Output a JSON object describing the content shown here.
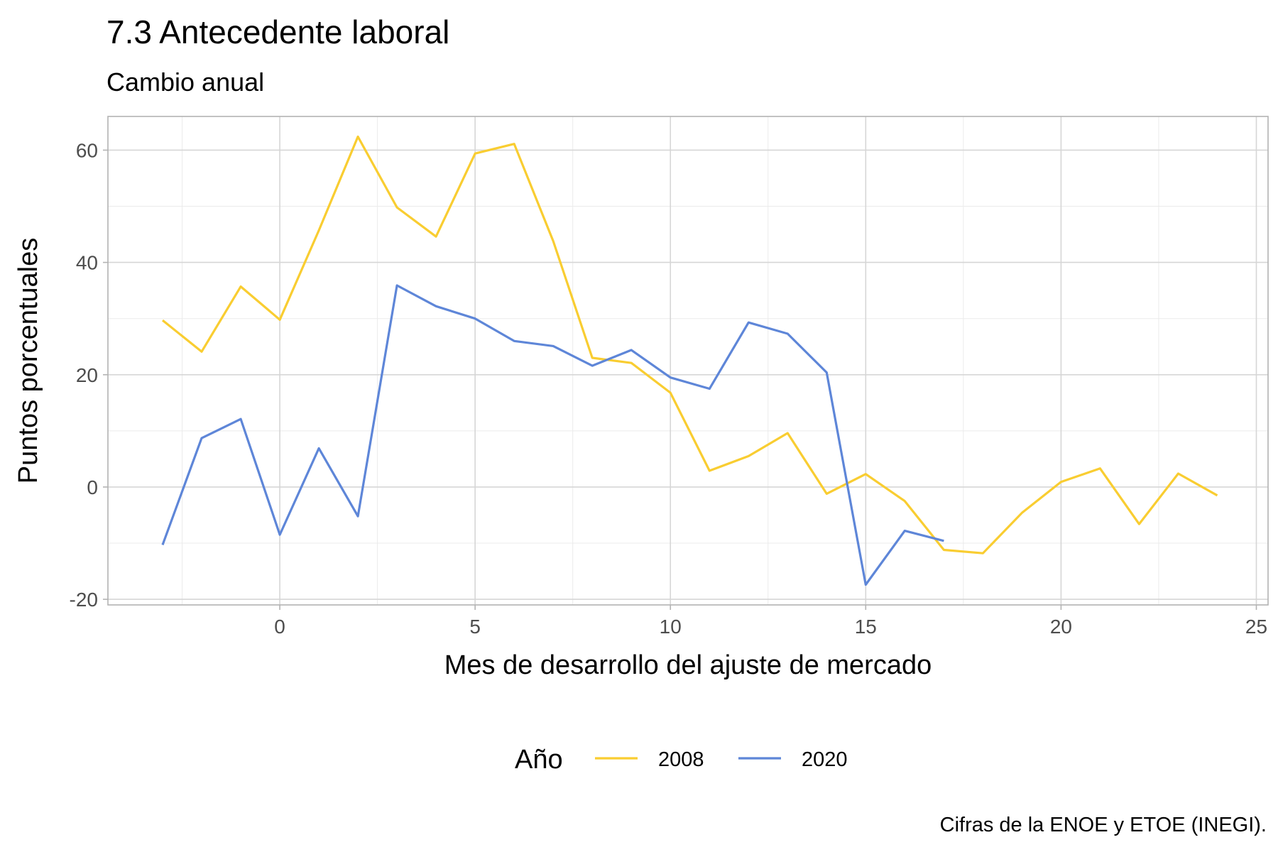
{
  "chart_data": {
    "type": "line",
    "title": "7.3 Antecedente laboral",
    "subtitle": "Cambio anual",
    "xlabel": "Mes de desarrollo del ajuste de mercado",
    "ylabel": "Puntos porcentuales",
    "caption": "Cifras de la ENOE y ETOE (INEGI).",
    "xlim": [
      -4.4,
      25.3
    ],
    "ylim": [
      -21,
      66
    ],
    "xticks": [
      0,
      5,
      10,
      15,
      20,
      25
    ],
    "yticks": [
      -20,
      0,
      20,
      40,
      60
    ],
    "xminor": [
      -2.5,
      2.5,
      7.5,
      12.5,
      17.5,
      22.5
    ],
    "yminor": [
      -10,
      10,
      30,
      50
    ],
    "grid": true,
    "legend": {
      "title": "Año",
      "placement": "bottom"
    },
    "series": [
      {
        "name": "2008",
        "color": "#F9CD31",
        "x": [
          -3,
          -2,
          -1,
          0,
          1,
          2,
          3,
          4,
          5,
          6,
          7,
          8,
          9,
          10,
          11,
          12,
          13,
          14,
          15,
          16,
          17,
          18,
          19,
          20,
          21,
          22,
          23,
          24
        ],
        "y": [
          29.7,
          24.1,
          35.7,
          29.8,
          45.7,
          62.4,
          49.8,
          44.6,
          59.4,
          61.1,
          43.8,
          23.0,
          22.1,
          16.8,
          2.9,
          5.5,
          9.6,
          -1.2,
          2.3,
          -2.5,
          -11.2,
          -11.8,
          -4.6,
          0.9,
          3.3,
          -6.6,
          2.4,
          -1.5
        ]
      },
      {
        "name": "2020",
        "color": "#5E86D8",
        "x": [
          -3,
          -2,
          -1,
          0,
          1,
          2,
          3,
          4,
          5,
          6,
          7,
          8,
          9,
          10,
          11,
          12,
          13,
          14,
          15,
          16,
          17
        ],
        "y": [
          -10.3,
          8.7,
          12.1,
          -8.5,
          6.9,
          -5.2,
          35.9,
          32.2,
          30.0,
          26.0,
          25.1,
          21.6,
          24.4,
          19.5,
          17.5,
          29.3,
          27.3,
          20.4,
          -17.4,
          -7.8,
          -9.6
        ]
      }
    ]
  }
}
